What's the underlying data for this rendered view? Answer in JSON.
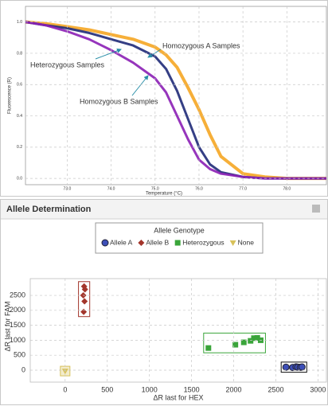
{
  "chart_data": [
    {
      "type": "line",
      "x_label": "Temperature (°C)",
      "y_label": "Fluorescence (R)",
      "x": [
        72.05,
        72.5,
        73,
        73.5,
        74,
        74.5,
        75,
        75.25,
        75.5,
        75.75,
        76,
        76.25,
        76.5,
        77,
        77.5,
        78,
        78.9
      ],
      "series": [
        {
          "name": "Homozygous A Samples",
          "color": "#f5a623",
          "values": [
            1.0,
            0.99,
            0.97,
            0.95,
            0.92,
            0.89,
            0.84,
            0.79,
            0.71,
            0.58,
            0.44,
            0.28,
            0.14,
            0.03,
            0.01,
            0.0,
            0.0
          ]
        },
        {
          "name": "Heterozygous Samples",
          "color": "#1f2a78",
          "values": [
            1.0,
            0.98,
            0.96,
            0.93,
            0.89,
            0.85,
            0.78,
            0.7,
            0.56,
            0.38,
            0.2,
            0.09,
            0.04,
            0.01,
            0.0,
            0.0,
            0.0
          ]
        },
        {
          "name": "Homozygous B Samples",
          "color": "#8b1fb5",
          "values": [
            1.0,
            0.98,
            0.94,
            0.89,
            0.82,
            0.74,
            0.64,
            0.55,
            0.4,
            0.25,
            0.12,
            0.06,
            0.03,
            0.01,
            0.0,
            0.0,
            0.0
          ]
        }
      ],
      "xlim": [
        72.05,
        78.9
      ],
      "ylim": [
        -0.04,
        1.1
      ],
      "xticks": [
        {
          "value": 73,
          "label": "73.0"
        },
        {
          "value": 74,
          "label": "74.0"
        },
        {
          "value": 75,
          "label": "75.0"
        },
        {
          "value": 76,
          "label": "76.0"
        },
        {
          "value": 77,
          "label": "77.0"
        },
        {
          "value": 78,
          "label": "78.0"
        }
      ],
      "yticks": [
        {
          "value": 0,
          "label": "0.0"
        },
        {
          "value": 0.2,
          "label": "0.2"
        },
        {
          "value": 0.4,
          "label": "0.4"
        },
        {
          "value": 0.6,
          "label": "0.6"
        },
        {
          "value": 0.8,
          "label": "0.8"
        },
        {
          "value": 1.0,
          "label": "1.0"
        }
      ],
      "grid": true
    },
    {
      "type": "scatter",
      "title": "Allele Determination",
      "legend_title": "Allele Genotype",
      "x_label": "ΔR last for HEX",
      "y_label": "ΔR last for FAM",
      "series": [
        {
          "name": "Allele A",
          "color": "#3d4fb8",
          "marker": "circle",
          "x": [
            2620,
            2700,
            2740,
            2760,
            2790,
            2810
          ],
          "y": [
            100,
            90,
            110,
            100,
            95,
            105
          ]
        },
        {
          "name": "Allele B",
          "color": "#a3352b",
          "marker": "diamond",
          "x": [
            225,
            235,
            215,
            230,
            220
          ],
          "y": [
            2800,
            2700,
            2500,
            2300,
            1950
          ]
        },
        {
          "name": "Heterozygous",
          "color": "#3aa53a",
          "marker": "square",
          "x": [
            1700,
            2020,
            2120,
            2200,
            2240,
            2280,
            2320
          ],
          "y": [
            740,
            850,
            930,
            980,
            1070,
            1080,
            1000
          ]
        },
        {
          "name": "None",
          "color": "#d8c25a",
          "marker": "triangle",
          "x": [
            0
          ],
          "y": [
            -30
          ]
        }
      ],
      "xlim": [
        -414,
        3100
      ],
      "ylim": [
        -400,
        3060
      ],
      "xticks": [
        0,
        500,
        1000,
        1500,
        2000,
        2500,
        3000
      ],
      "yticks": [
        0,
        500,
        1000,
        1500,
        2000,
        2500
      ],
      "grid": true
    }
  ]
}
